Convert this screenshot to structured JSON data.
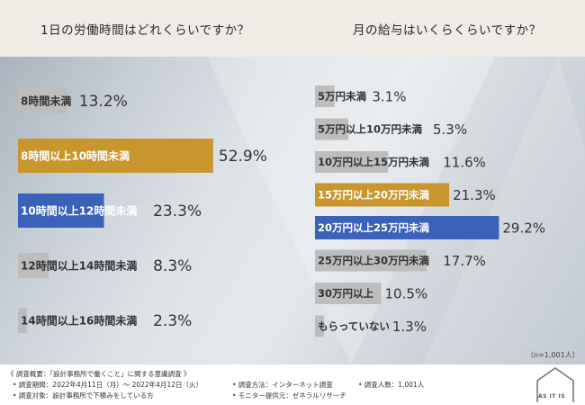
{
  "titles": {
    "left": "1日の労働時間はどれくらいですか？",
    "right": "月の給与はいくらくらいですか？"
  },
  "sample_note": "（n=1,001人）",
  "colors": {
    "gold": "#c9962e",
    "blue": "#3a62b8",
    "gray": "#bdbdbd",
    "header_band": "#efebe5"
  },
  "footer": {
    "summary": "《 調査概要：「設計事務所で働くこと」に関する意識調査 》",
    "period": "• 調査期間：2022年4月11日（月）〜 2022年4月12日（火）",
    "target": "• 調査対象：設計事務所で下積みをしている方",
    "method": "• 調査方法：インターネット調査",
    "monitor": "• モニター提供元：ゼネラルリサーチ",
    "count": "• 調査人数：1,001人"
  },
  "logo": {
    "text": "AS IT IS",
    "icon": "house-icon"
  },
  "chart_data": [
    {
      "type": "bar",
      "orientation": "horizontal",
      "title": "1日の労働時間はどれくらいですか？",
      "categories": [
        "8時間未満",
        "8時間以上10時間未満",
        "10時間以上12時間未満",
        "12時間以上14時間未満",
        "14時間以上16時間未満"
      ],
      "values": [
        13.2,
        52.9,
        23.3,
        8.3,
        2.3
      ],
      "value_labels": [
        "13.2%",
        "52.9%",
        "23.3%",
        "8.3%",
        "2.3%"
      ],
      "bar_colors": [
        "#bdbdbd",
        "#c9962e",
        "#3a62b8",
        "#bdbdbd",
        "#bdbdbd"
      ],
      "unit": "%"
    },
    {
      "type": "bar",
      "orientation": "horizontal",
      "title": "月の給与はいくらくらいですか？",
      "categories": [
        "5万円未満",
        "5万円以上10万円未満",
        "10万円以上15万円未満",
        "15万円以上20万円未満",
        "20万円以上25万円未満",
        "25万円以上30万円未満",
        "30万円以上",
        "もらっていない"
      ],
      "values": [
        3.1,
        5.3,
        11.6,
        21.3,
        29.2,
        17.7,
        10.5,
        1.3
      ],
      "value_labels": [
        "3.1%",
        "5.3%",
        "11.6%",
        "21.3%",
        "29.2%",
        "17.7%",
        "10.5%",
        "1.3%"
      ],
      "bar_colors": [
        "#bdbdbd",
        "#bdbdbd",
        "#bdbdbd",
        "#c9962e",
        "#3a62b8",
        "#bdbdbd",
        "#bdbdbd",
        "#bdbdbd"
      ],
      "unit": "%"
    }
  ]
}
